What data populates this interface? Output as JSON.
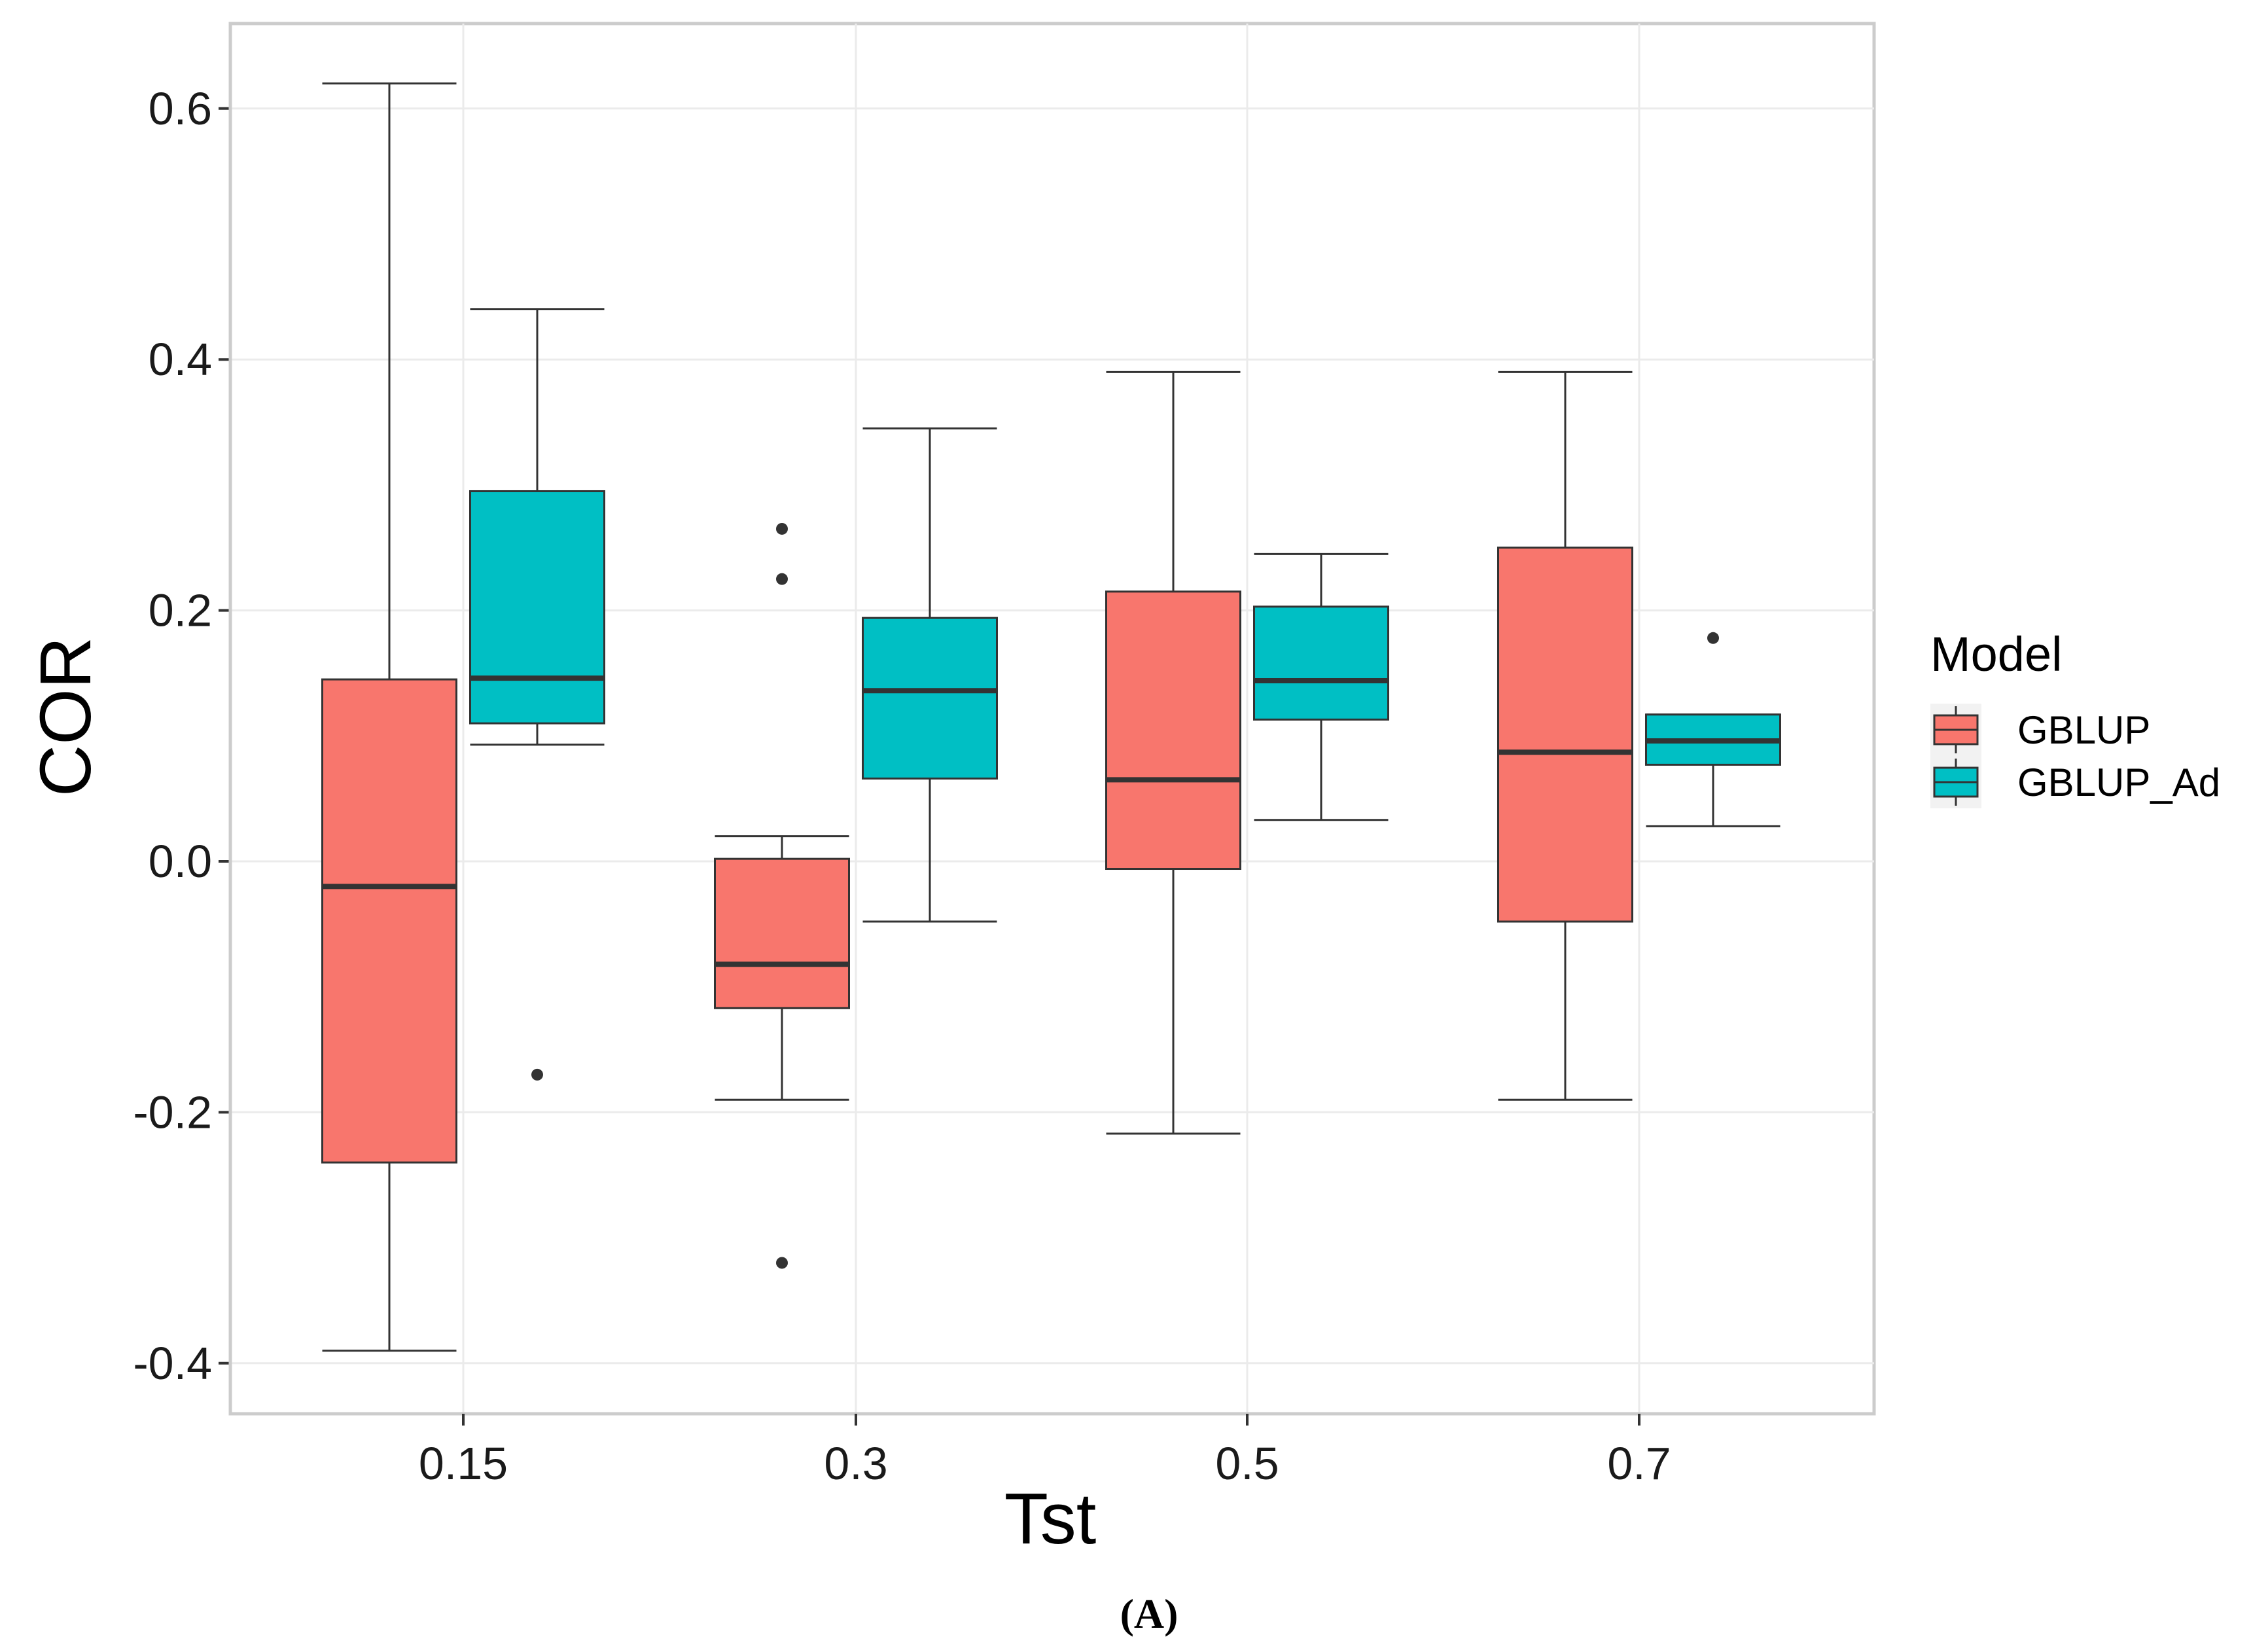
{
  "chart_data": {
    "type": "box",
    "xlabel": "Tst",
    "ylabel": "COR",
    "caption": "(A)",
    "categories": [
      "0.15",
      "0.3",
      "0.5",
      "0.7"
    ],
    "ylim": [
      -0.44,
      0.67
    ],
    "yticks": [
      {
        "value": 0.6,
        "label": "0.6"
      },
      {
        "value": 0.4,
        "label": "0.4"
      },
      {
        "value": 0.2,
        "label": "0.2"
      },
      {
        "value": 0.0,
        "label": "0.0"
      },
      {
        "value": -0.2,
        "label": "-0.2"
      },
      {
        "value": -0.4,
        "label": "-0.4"
      }
    ],
    "legend": {
      "title": "Model",
      "position": "right",
      "entries": [
        {
          "name": "GBLUP",
          "color": "#F8766D"
        },
        {
          "name": "GBLUP_Ad",
          "color": "#00BFC4"
        }
      ]
    },
    "series": [
      {
        "name": "GBLUP",
        "color": "#F8766D",
        "boxes": [
          {
            "category": "0.15",
            "whisker_low": -0.39,
            "q1": -0.24,
            "median": -0.02,
            "q3": 0.145,
            "whisker_high": 0.62,
            "outliers": []
          },
          {
            "category": "0.3",
            "whisker_low": -0.19,
            "q1": -0.117,
            "median": -0.082,
            "q3": 0.002,
            "whisker_high": 0.02,
            "outliers": [
              0.265,
              0.225,
              -0.32
            ]
          },
          {
            "category": "0.5",
            "whisker_low": -0.217,
            "q1": -0.006,
            "median": 0.065,
            "q3": 0.215,
            "whisker_high": 0.39,
            "outliers": []
          },
          {
            "category": "0.7",
            "whisker_low": -0.19,
            "q1": -0.048,
            "median": 0.087,
            "q3": 0.25,
            "whisker_high": 0.39,
            "outliers": []
          }
        ]
      },
      {
        "name": "GBLUP_Ad",
        "color": "#00BFC4",
        "boxes": [
          {
            "category": "0.15",
            "whisker_low": 0.093,
            "q1": 0.11,
            "median": 0.146,
            "q3": 0.295,
            "whisker_high": 0.44,
            "outliers": [
              -0.17
            ]
          },
          {
            "category": "0.3",
            "whisker_low": -0.048,
            "q1": 0.066,
            "median": 0.136,
            "q3": 0.194,
            "whisker_high": 0.345,
            "outliers": []
          },
          {
            "category": "0.5",
            "whisker_low": 0.033,
            "q1": 0.113,
            "median": 0.144,
            "q3": 0.203,
            "whisker_high": 0.245,
            "outliers": []
          },
          {
            "category": "0.7",
            "whisker_low": 0.028,
            "q1": 0.077,
            "median": 0.096,
            "q3": 0.117,
            "whisker_high": 0.117,
            "outliers": [
              0.178
            ]
          }
        ]
      }
    ]
  }
}
